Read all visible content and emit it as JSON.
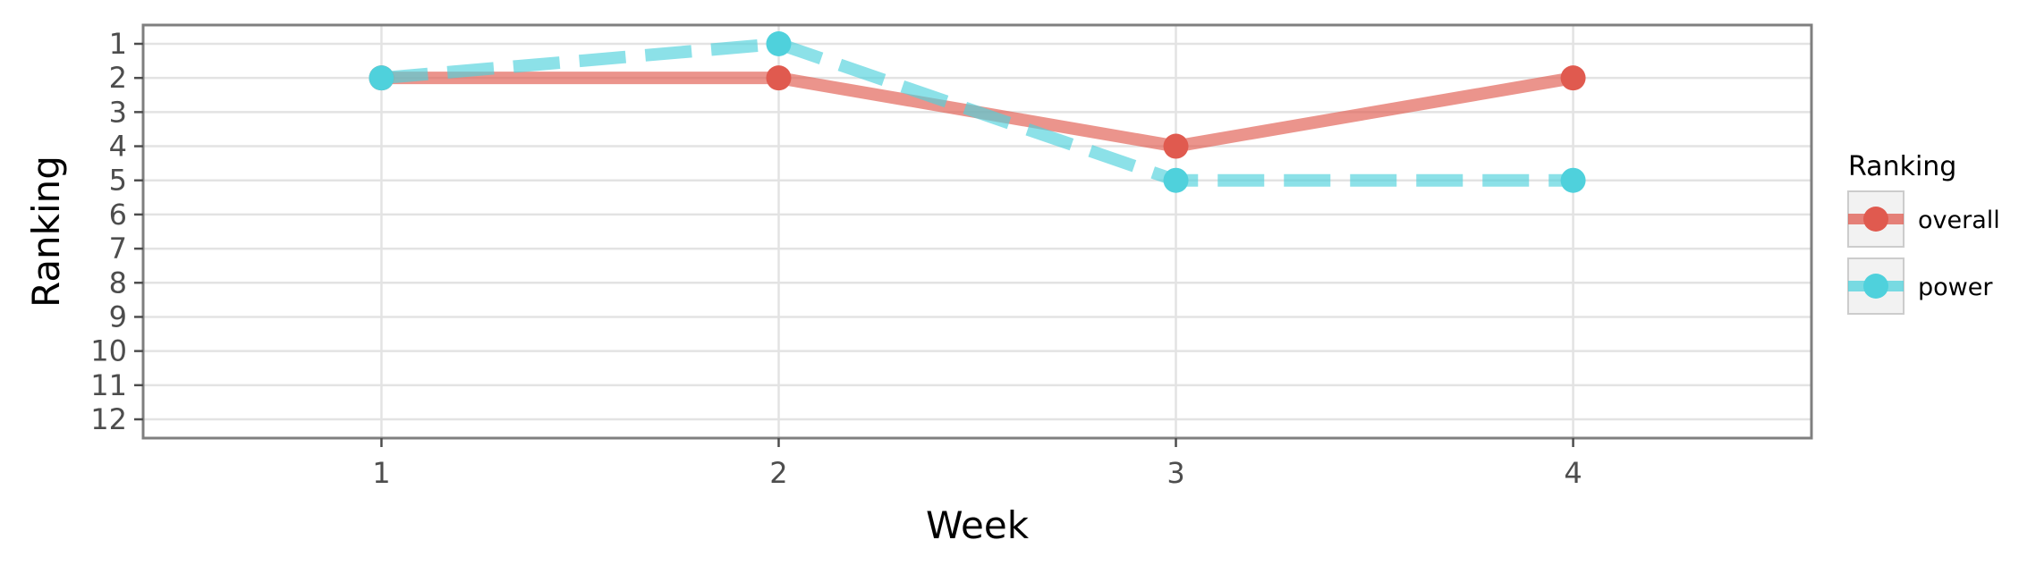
{
  "chart_data": {
    "type": "line",
    "x": [
      1,
      2,
      3,
      4
    ],
    "xlabel": "Week",
    "ylabel": "Ranking",
    "x_ticks": [
      1,
      2,
      3,
      4
    ],
    "y_ticks": [
      1,
      2,
      3,
      4,
      5,
      6,
      7,
      8,
      9,
      10,
      11,
      12
    ],
    "xlim": [
      0.4,
      4.6
    ],
    "ylim": [
      12.55,
      0.45
    ],
    "y_reversed": true,
    "grid": true,
    "legend": {
      "title": "Ranking",
      "placement": "right"
    },
    "series": [
      {
        "name": "overall",
        "values": [
          2,
          2,
          4,
          2
        ],
        "color": "#e05a4f",
        "line_style": "solid"
      },
      {
        "name": "power",
        "values": [
          2,
          1,
          5,
          5
        ],
        "color": "#4fd1dc",
        "line_style": "dashed"
      }
    ]
  }
}
